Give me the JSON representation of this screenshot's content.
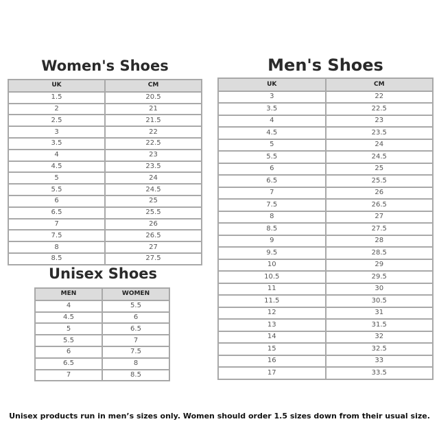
{
  "womens": {
    "title": "Women's Shoes",
    "headers": [
      "UK",
      "CM"
    ],
    "rows": [
      [
        "1.5",
        "20.5"
      ],
      [
        "2",
        "21"
      ],
      [
        "2.5",
        "21.5"
      ],
      [
        "3",
        "22"
      ],
      [
        "3.5",
        "22.5"
      ],
      [
        "4",
        "23"
      ],
      [
        "4.5",
        "23.5"
      ],
      [
        "5",
        "24"
      ],
      [
        "5.5",
        "24.5"
      ],
      [
        "6",
        "25"
      ],
      [
        "6.5",
        "25.5"
      ],
      [
        "7",
        "26"
      ],
      [
        "7.5",
        "26.5"
      ],
      [
        "8",
        "27"
      ],
      [
        "8.5",
        "27.5"
      ]
    ]
  },
  "mens": {
    "title": "Men's Shoes",
    "headers": [
      "UK",
      "CM"
    ],
    "rows": [
      [
        "3",
        "22"
      ],
      [
        "3.5",
        "22.5"
      ],
      [
        "4",
        "23"
      ],
      [
        "4.5",
        "23.5"
      ],
      [
        "5",
        "24"
      ],
      [
        "5.5",
        "24.5"
      ],
      [
        "6",
        "25"
      ],
      [
        "6.5",
        "25.5"
      ],
      [
        "7",
        "26"
      ],
      [
        "7.5",
        "26.5"
      ],
      [
        "8",
        "27"
      ],
      [
        "8.5",
        "27.5"
      ],
      [
        "9",
        "28"
      ],
      [
        "9.5",
        "28.5"
      ],
      [
        "10",
        "29"
      ],
      [
        "10.5",
        "29.5"
      ],
      [
        "11",
        "30"
      ],
      [
        "11.5",
        "30.5"
      ],
      [
        "12",
        "31"
      ],
      [
        "13",
        "31.5"
      ],
      [
        "14",
        "32"
      ],
      [
        "15",
        "32.5"
      ],
      [
        "16",
        "33"
      ],
      [
        "17",
        "33.5"
      ]
    ]
  },
  "unisex": {
    "title": "Unisex Shoes",
    "headers": [
      "MEN",
      "WOMEN"
    ],
    "rows": [
      [
        "4",
        "5.5"
      ],
      [
        "4.5",
        "6"
      ],
      [
        "5",
        "6.5"
      ],
      [
        "5.5",
        "7"
      ],
      [
        "6",
        "7.5"
      ],
      [
        "6.5",
        "8"
      ],
      [
        "7",
        "8.5"
      ]
    ]
  },
  "footnote": "Unisex products run in men’s sizes only. Women should order 1.5 sizes down from their usual size."
}
